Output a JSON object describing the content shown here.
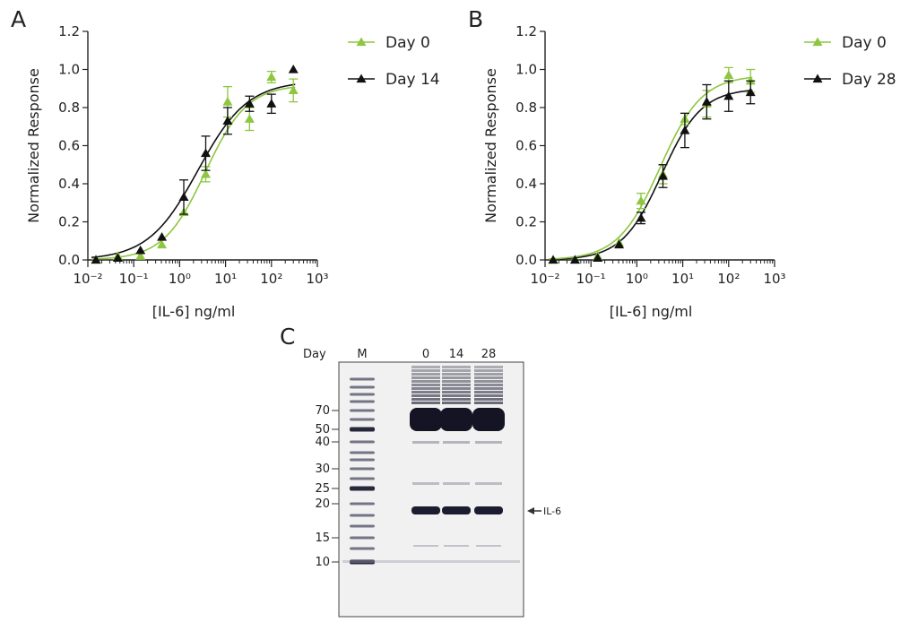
{
  "panels": {
    "a": {
      "letter": "A"
    },
    "b": {
      "letter": "B"
    },
    "c": {
      "letter": "C"
    }
  },
  "chart_data": [
    {
      "type": "scatter",
      "panel": "A",
      "xlabel": "[IL-6] ng/ml",
      "ylabel": "Normalized Response",
      "xscale": "log",
      "xlim": [
        0.01,
        1000
      ],
      "ylim": [
        0,
        1.2
      ],
      "xticks": [
        0.01,
        0.1,
        1,
        10,
        100,
        1000
      ],
      "xtick_labels": [
        "10⁻²",
        "10⁻¹",
        "10⁰",
        "10¹",
        "10²",
        "10³"
      ],
      "yticks": [
        0,
        0.2,
        0.4,
        0.6,
        0.8,
        1.0,
        1.2
      ],
      "ytick_labels": [
        "0.0",
        "0.2",
        "0.4",
        "0.6",
        "0.8",
        "1.0",
        "1.2"
      ],
      "legend_position": "top-right",
      "grid": false,
      "series": [
        {
          "name": "Day 0",
          "color": "#8dc63f",
          "marker": "triangle",
          "fit": "sigmoid",
          "fit_params": {
            "ec50": 3.6,
            "hill": 0.95,
            "top": 0.92,
            "bottom": 0.0
          },
          "points": [
            {
              "x": 0.015,
              "y": 0.0,
              "err": 0
            },
            {
              "x": 0.045,
              "y": 0.02,
              "err": 0
            },
            {
              "x": 0.14,
              "y": 0.02,
              "err": 0
            },
            {
              "x": 0.41,
              "y": 0.08,
              "err": 0
            },
            {
              "x": 1.23,
              "y": 0.25,
              "err": 0
            },
            {
              "x": 3.7,
              "y": 0.45,
              "err": 0.04
            },
            {
              "x": 11.1,
              "y": 0.83,
              "err": 0.08
            },
            {
              "x": 33.3,
              "y": 0.74,
              "err": 0.06
            },
            {
              "x": 100,
              "y": 0.96,
              "err": 0.03
            },
            {
              "x": 300,
              "y": 0.89,
              "err": 0.06
            }
          ]
        },
        {
          "name": "Day 14",
          "color": "#111111",
          "marker": "triangle",
          "fit": "sigmoid",
          "fit_params": {
            "ec50": 2.5,
            "hill": 0.8,
            "top": 0.94,
            "bottom": 0.0
          },
          "points": [
            {
              "x": 0.015,
              "y": 0.0,
              "err": 0
            },
            {
              "x": 0.045,
              "y": 0.01,
              "err": 0
            },
            {
              "x": 0.14,
              "y": 0.05,
              "err": 0
            },
            {
              "x": 0.41,
              "y": 0.12,
              "err": 0
            },
            {
              "x": 1.23,
              "y": 0.33,
              "err": 0.09
            },
            {
              "x": 3.7,
              "y": 0.56,
              "err": 0.09
            },
            {
              "x": 11.1,
              "y": 0.73,
              "err": 0.07
            },
            {
              "x": 33.3,
              "y": 0.82,
              "err": 0.04
            },
            {
              "x": 100,
              "y": 0.82,
              "err": 0.05
            },
            {
              "x": 300,
              "y": 1.0,
              "err": 0
            }
          ]
        }
      ]
    },
    {
      "type": "scatter",
      "panel": "B",
      "xlabel": "[IL-6] ng/ml",
      "ylabel": "Normalized Response",
      "xscale": "log",
      "xlim": [
        0.01,
        1000
      ],
      "ylim": [
        0,
        1.2
      ],
      "xticks": [
        0.01,
        0.1,
        1,
        10,
        100,
        1000
      ],
      "xtick_labels": [
        "10⁻²",
        "10⁻¹",
        "10⁰",
        "10¹",
        "10²",
        "10³"
      ],
      "yticks": [
        0,
        0.2,
        0.4,
        0.6,
        0.8,
        1.0,
        1.2
      ],
      "ytick_labels": [
        "0.0",
        "0.2",
        "0.4",
        "0.6",
        "0.8",
        "1.0",
        "1.2"
      ],
      "legend_position": "top-right",
      "grid": false,
      "series": [
        {
          "name": "Day 0",
          "color": "#8dc63f",
          "marker": "triangle",
          "fit": "sigmoid",
          "fit_params": {
            "ec50": 3.2,
            "hill": 0.95,
            "top": 0.97,
            "bottom": 0.0
          },
          "points": [
            {
              "x": 0.015,
              "y": 0.0,
              "err": 0
            },
            {
              "x": 0.045,
              "y": 0.0,
              "err": 0
            },
            {
              "x": 0.14,
              "y": 0.02,
              "err": 0
            },
            {
              "x": 0.41,
              "y": 0.09,
              "err": 0
            },
            {
              "x": 1.23,
              "y": 0.31,
              "err": 0.04
            },
            {
              "x": 3.7,
              "y": 0.45,
              "err": 0.05
            },
            {
              "x": 11.1,
              "y": 0.74,
              "err": 0.03
            },
            {
              "x": 33.3,
              "y": 0.82,
              "err": 0.07
            },
            {
              "x": 100,
              "y": 0.97,
              "err": 0.04
            },
            {
              "x": 300,
              "y": 0.94,
              "err": 0.06
            }
          ]
        },
        {
          "name": "Day 28",
          "color": "#111111",
          "marker": "triangle",
          "fit": "sigmoid",
          "fit_params": {
            "ec50": 3.5,
            "hill": 1.0,
            "top": 0.9,
            "bottom": 0.0
          },
          "points": [
            {
              "x": 0.015,
              "y": 0.0,
              "err": 0
            },
            {
              "x": 0.045,
              "y": 0.0,
              "err": 0
            },
            {
              "x": 0.14,
              "y": 0.01,
              "err": 0
            },
            {
              "x": 0.41,
              "y": 0.08,
              "err": 0
            },
            {
              "x": 1.23,
              "y": 0.22,
              "err": 0.03
            },
            {
              "x": 3.7,
              "y": 0.44,
              "err": 0.06
            },
            {
              "x": 11.1,
              "y": 0.68,
              "err": 0.09
            },
            {
              "x": 33.3,
              "y": 0.83,
              "err": 0.09
            },
            {
              "x": 100,
              "y": 0.86,
              "err": 0.08
            },
            {
              "x": 300,
              "y": 0.88,
              "err": 0.06
            }
          ]
        }
      ]
    }
  ],
  "gel": {
    "day_label": "Day",
    "lane_labels": [
      "M",
      "0",
      "14",
      "28"
    ],
    "marker_sizes": [
      "70",
      "50",
      "40",
      "30",
      "25",
      "20",
      "15",
      "10"
    ],
    "marker_kda": [
      70,
      50,
      40,
      30,
      25,
      20,
      15,
      10
    ],
    "arrow_label": "IL-6"
  }
}
